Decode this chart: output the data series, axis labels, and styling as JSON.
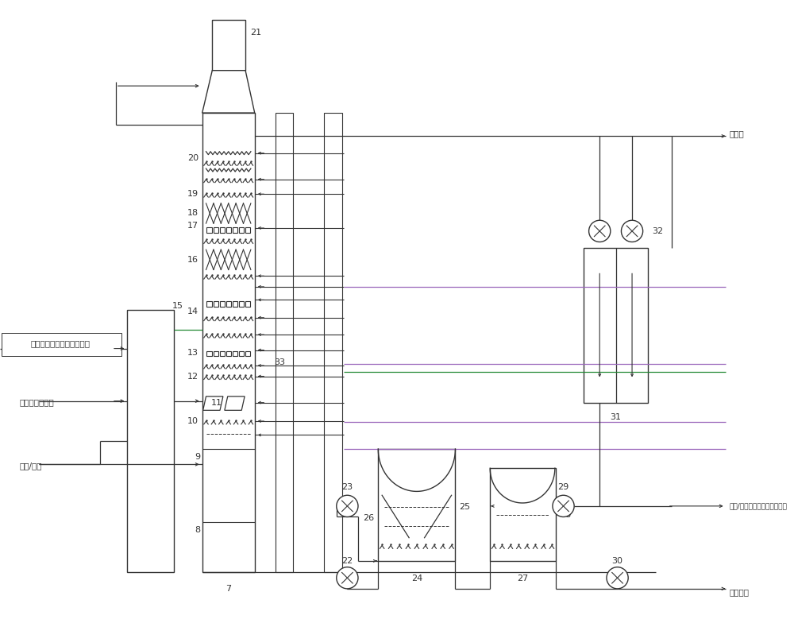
{
  "bg_color": "#ffffff",
  "lc": "#333333",
  "lw": 1.0,
  "purple": "#9966bb",
  "green": "#228833",
  "label_hot_air": "热空气来自前端空气换热器",
  "label_flue": "降温系统来烟气",
  "label_ammonia": "氨水/液氨",
  "label_process_water": "工艺水",
  "label_oxidation": "氧化空气",
  "label_sulfur": "晶浆/硫钒液至硫钒后处理系统",
  "figw": 10.0,
  "figh": 7.79
}
